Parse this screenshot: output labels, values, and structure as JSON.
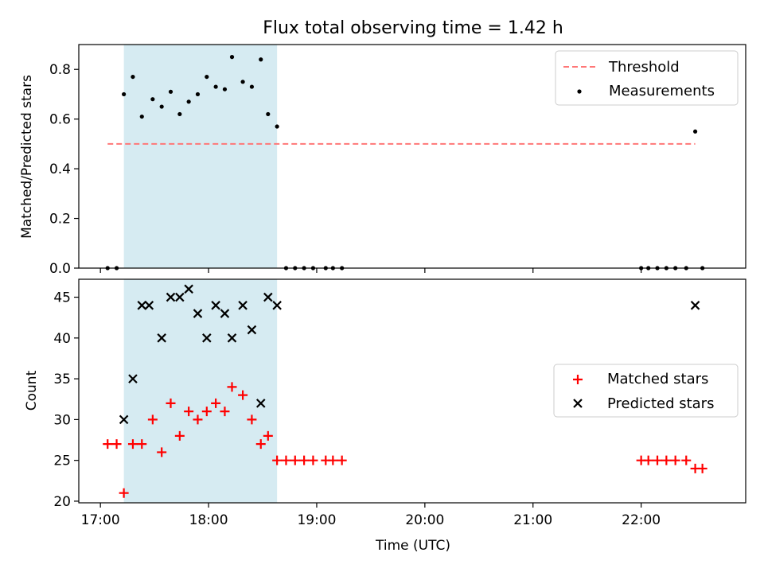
{
  "title": "Flux total observing time = 1.42 h",
  "colors": {
    "threshold": "#ff7777",
    "measurement": "#000000",
    "matched": "#ff0000",
    "predicted": "#000000",
    "span": "#add8e6"
  },
  "chart_data": [
    {
      "type": "scatter",
      "panel": "top",
      "xlabel": "",
      "ylabel": "Matched/Predicted stars",
      "ylim": [
        0,
        0.9
      ],
      "yticks": [
        0.0,
        0.2,
        0.4,
        0.6,
        0.8
      ],
      "ytick_labels": [
        "0.0",
        "0.2",
        "0.4",
        "0.6",
        "0.8"
      ],
      "xlim": [
        "16:48",
        "22:58"
      ],
      "highlight_span": [
        "17:13",
        "18:38"
      ],
      "legend_position": "upper right",
      "threshold": {
        "name": "Threshold",
        "y": 0.5,
        "x": [
          "17:04",
          "22:30"
        ]
      },
      "series": [
        {
          "name": "Measurements",
          "marker": "dot",
          "points": [
            [
              "17:04",
              0.0
            ],
            [
              "17:09",
              0.0
            ],
            [
              "17:13",
              0.7
            ],
            [
              "17:18",
              0.77
            ],
            [
              "17:23",
              0.61
            ],
            [
              "17:29",
              0.68
            ],
            [
              "17:34",
              0.65
            ],
            [
              "17:39",
              0.71
            ],
            [
              "17:44",
              0.62
            ],
            [
              "17:49",
              0.67
            ],
            [
              "17:54",
              0.7
            ],
            [
              "17:59",
              0.77
            ],
            [
              "18:04",
              0.73
            ],
            [
              "18:09",
              0.72
            ],
            [
              "18:13",
              0.85
            ],
            [
              "18:19",
              0.75
            ],
            [
              "18:24",
              0.73
            ],
            [
              "18:29",
              0.84
            ],
            [
              "18:33",
              0.62
            ],
            [
              "18:38",
              0.57
            ],
            [
              "18:43",
              0.0
            ],
            [
              "18:48",
              0.0
            ],
            [
              "18:53",
              0.0
            ],
            [
              "18:58",
              0.0
            ],
            [
              "19:05",
              0.0
            ],
            [
              "19:09",
              0.0
            ],
            [
              "19:14",
              0.0
            ],
            [
              "22:00",
              0.0
            ],
            [
              "22:04",
              0.0
            ],
            [
              "22:09",
              0.0
            ],
            [
              "22:14",
              0.0
            ],
            [
              "22:19",
              0.0
            ],
            [
              "22:25",
              0.0
            ],
            [
              "22:30",
              0.55
            ],
            [
              "22:34",
              0.0
            ]
          ]
        }
      ]
    },
    {
      "type": "scatter",
      "panel": "bottom",
      "xlabel": "Time (UTC)",
      "ylabel": "Count",
      "ylim": [
        19.8,
        47.2
      ],
      "yticks": [
        20,
        25,
        30,
        35,
        40,
        45
      ],
      "ytick_labels": [
        "20",
        "25",
        "30",
        "35",
        "40",
        "45"
      ],
      "xlim": [
        "16:48",
        "22:58"
      ],
      "xticks": [
        "17:00",
        "18:00",
        "19:00",
        "20:00",
        "21:00",
        "22:00"
      ],
      "xtick_labels": [
        "17:00",
        "18:00",
        "19:00",
        "20:00",
        "21:00",
        "22:00"
      ],
      "highlight_span": [
        "17:13",
        "18:38"
      ],
      "legend_position": "center right",
      "series": [
        {
          "name": "Matched stars",
          "marker": "plus",
          "points": [
            [
              "17:04",
              27
            ],
            [
              "17:09",
              27
            ],
            [
              "17:13",
              21
            ],
            [
              "17:18",
              27
            ],
            [
              "17:23",
              27
            ],
            [
              "17:29",
              30
            ],
            [
              "17:34",
              26
            ],
            [
              "17:39",
              32
            ],
            [
              "17:44",
              28
            ],
            [
              "17:49",
              31
            ],
            [
              "17:54",
              30
            ],
            [
              "17:59",
              31
            ],
            [
              "18:04",
              32
            ],
            [
              "18:09",
              31
            ],
            [
              "18:13",
              34
            ],
            [
              "18:19",
              33
            ],
            [
              "18:24",
              30
            ],
            [
              "18:29",
              27
            ],
            [
              "18:33",
              28
            ],
            [
              "18:38",
              25
            ],
            [
              "18:43",
              25
            ],
            [
              "18:48",
              25
            ],
            [
              "18:53",
              25
            ],
            [
              "18:58",
              25
            ],
            [
              "19:05",
              25
            ],
            [
              "19:09",
              25
            ],
            [
              "19:14",
              25
            ],
            [
              "22:00",
              25
            ],
            [
              "22:04",
              25
            ],
            [
              "22:09",
              25
            ],
            [
              "22:14",
              25
            ],
            [
              "22:19",
              25
            ],
            [
              "22:25",
              25
            ],
            [
              "22:30",
              24
            ],
            [
              "22:34",
              24
            ]
          ]
        },
        {
          "name": "Predicted stars",
          "marker": "x",
          "points": [
            [
              "17:13",
              30
            ],
            [
              "17:18",
              35
            ],
            [
              "17:23",
              44
            ],
            [
              "17:27",
              44
            ],
            [
              "17:34",
              40
            ],
            [
              "17:39",
              45
            ],
            [
              "17:44",
              45
            ],
            [
              "17:49",
              46
            ],
            [
              "17:54",
              43
            ],
            [
              "17:59",
              40
            ],
            [
              "18:04",
              44
            ],
            [
              "18:09",
              43
            ],
            [
              "18:13",
              40
            ],
            [
              "18:19",
              44
            ],
            [
              "18:24",
              41
            ],
            [
              "18:29",
              32
            ],
            [
              "18:33",
              45
            ],
            [
              "18:38",
              44
            ],
            [
              "22:30",
              44
            ]
          ]
        }
      ]
    }
  ]
}
